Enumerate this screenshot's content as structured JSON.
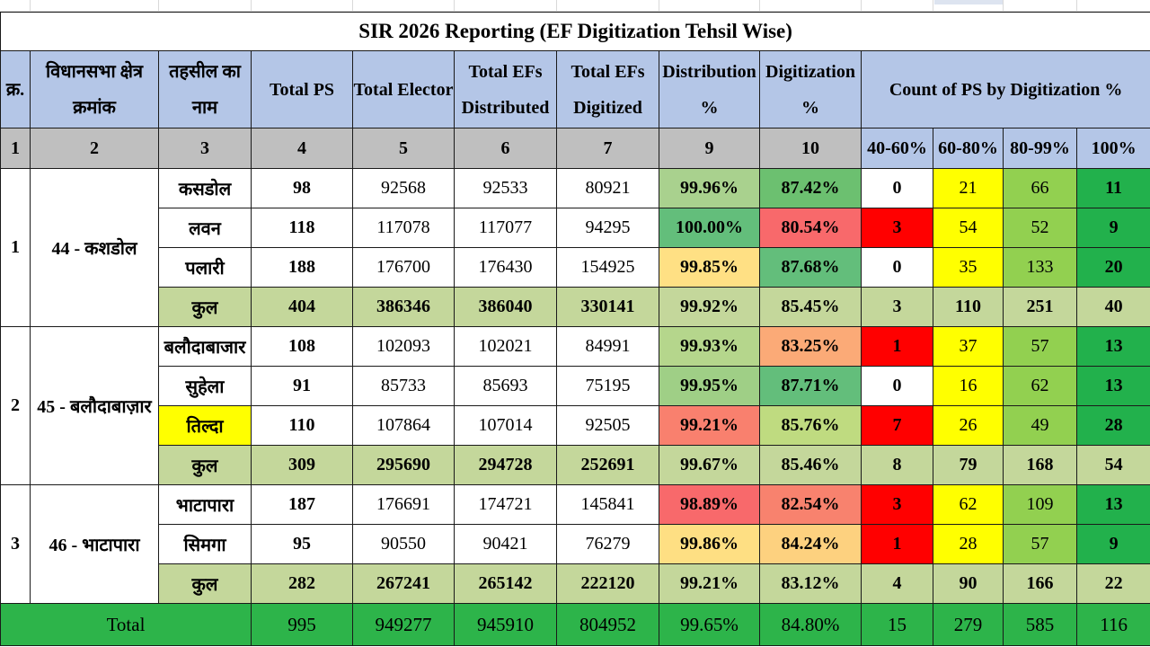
{
  "title": "SIR 2026 Reporting (EF Digitization Tehsil Wise)",
  "headers": {
    "sr": "क्र.",
    "ac": "विधानसभा क्षेत्र क्रमांक",
    "tehsil": "तहसील का नाम",
    "total_ps": "Total PS",
    "total_elector": "Total Elector",
    "efs_distributed": "Total EFs Distributed",
    "efs_digitized": "Total EFs Digitized",
    "distribution_pct": "Distribution %",
    "digitization_pct": "Digitization %",
    "count_group": "Count of PS by Digitization %"
  },
  "col_numbers": [
    "1",
    "2",
    "3",
    "4",
    "5",
    "6",
    "7",
    "9",
    "10"
  ],
  "bands": [
    "40-60%",
    "60-80%",
    "80-99%",
    "100%"
  ],
  "groups": [
    {
      "sr": "1",
      "ac": "44 - कशडोल",
      "rows": [
        {
          "tehsil": "कसडोल",
          "ps": "98",
          "elector": "92568",
          "dist": "92533",
          "digi": "80921",
          "dist_pct": "99.96%",
          "digi_pct": "87.42%",
          "b1": "0",
          "b2": "21",
          "b3": "66",
          "b4": "11",
          "dist_color": "#a9d18e",
          "digi_color": "#6cc070",
          "b1_color": "#ffffff"
        },
        {
          "tehsil": "लवन",
          "ps": "118",
          "elector": "117078",
          "dist": "117077",
          "digi": "94295",
          "dist_pct": "100.00%",
          "digi_pct": "80.54%",
          "b1": "3",
          "b2": "54",
          "b3": "52",
          "b4": "9",
          "dist_color": "#63be7b",
          "digi_color": "#f8696b",
          "b1_color": "#ff0000"
        },
        {
          "tehsil": "पलारी",
          "ps": "188",
          "elector": "176700",
          "dist": "176430",
          "digi": "154925",
          "dist_pct": "99.85%",
          "digi_pct": "87.68%",
          "b1": "0",
          "b2": "35",
          "b3": "133",
          "b4": "20",
          "dist_color": "#ffe084",
          "digi_color": "#63be7b",
          "b1_color": "#ffffff"
        }
      ],
      "total": {
        "label": "कुल",
        "ps": "404",
        "elector": "386346",
        "dist": "386040",
        "digi": "330141",
        "dist_pct": "99.92%",
        "digi_pct": "85.45%",
        "b1": "3",
        "b2": "110",
        "b3": "251",
        "b4": "40"
      }
    },
    {
      "sr": "2",
      "ac": "45 - बलौदाबाज़ार",
      "rows": [
        {
          "tehsil": "बलौदाबाजार",
          "ps": "108",
          "elector": "102093",
          "dist": "102021",
          "digi": "84991",
          "dist_pct": "99.93%",
          "digi_pct": "83.25%",
          "b1": "1",
          "b2": "37",
          "b3": "57",
          "b4": "13",
          "dist_color": "#b5d68c",
          "digi_color": "#fbaa77",
          "b1_color": "#ff0000"
        },
        {
          "tehsil": "सुहेला",
          "ps": "91",
          "elector": "85733",
          "dist": "85693",
          "digi": "75195",
          "dist_pct": "99.95%",
          "digi_pct": "87.71%",
          "b1": "0",
          "b2": "16",
          "b3": "62",
          "b4": "13",
          "dist_color": "#9fcf86",
          "digi_color": "#63be7b",
          "b1_color": "#ffffff"
        },
        {
          "tehsil": "तिल्दा",
          "ps": "110",
          "elector": "107864",
          "dist": "107014",
          "digi": "92505",
          "dist_pct": "99.21%",
          "digi_pct": "85.76%",
          "b1": "7",
          "b2": "26",
          "b3": "49",
          "b4": "28",
          "dist_color": "#f9806e",
          "digi_color": "#bfdb80",
          "b1_color": "#ff0000",
          "highlight": "true"
        }
      ],
      "total": {
        "label": "कुल",
        "ps": "309",
        "elector": "295690",
        "dist": "294728",
        "digi": "252691",
        "dist_pct": "99.67%",
        "digi_pct": "85.46%",
        "b1": "8",
        "b2": "79",
        "b3": "168",
        "b4": "54"
      }
    },
    {
      "sr": "3",
      "ac": "46 - भाटापारा",
      "rows": [
        {
          "tehsil": "भाटापारा",
          "ps": "187",
          "elector": "176691",
          "dist": "174721",
          "digi": "145841",
          "dist_pct": "98.89%",
          "digi_pct": "82.54%",
          "b1": "3",
          "b2": "62",
          "b3": "109",
          "b4": "13",
          "dist_color": "#f8696b",
          "digi_color": "#f8826e",
          "b1_color": "#ff0000"
        },
        {
          "tehsil": "सिमगा",
          "ps": "95",
          "elector": "90550",
          "dist": "90421",
          "digi": "76279",
          "dist_pct": "99.86%",
          "digi_pct": "84.24%",
          "b1": "1",
          "b2": "28",
          "b3": "57",
          "b4": "9",
          "dist_color": "#fedf83",
          "digi_color": "#fdd17f",
          "b1_color": "#ff0000"
        }
      ],
      "total": {
        "label": "कुल",
        "ps": "282",
        "elector": "267241",
        "dist": "265142",
        "digi": "222120",
        "dist_pct": "99.21%",
        "digi_pct": "83.12%",
        "b1": "4",
        "b2": "90",
        "b3": "166",
        "b4": "22"
      }
    }
  ],
  "grand_total": {
    "label": "Total",
    "ps": "995",
    "elector": "949277",
    "dist": "945910",
    "digi": "804952",
    "dist_pct": "99.65%",
    "digi_pct": "84.80%",
    "b1": "15",
    "b2": "279",
    "b3": "585",
    "b4": "116"
  },
  "colors": {
    "header": "#b4c6e7",
    "subtotal": "#c4d79b",
    "grand_total": "#2db44a",
    "band_60_80": "#ffff00",
    "band_80_99": "#92d050",
    "band_100": "#22b14c"
  }
}
